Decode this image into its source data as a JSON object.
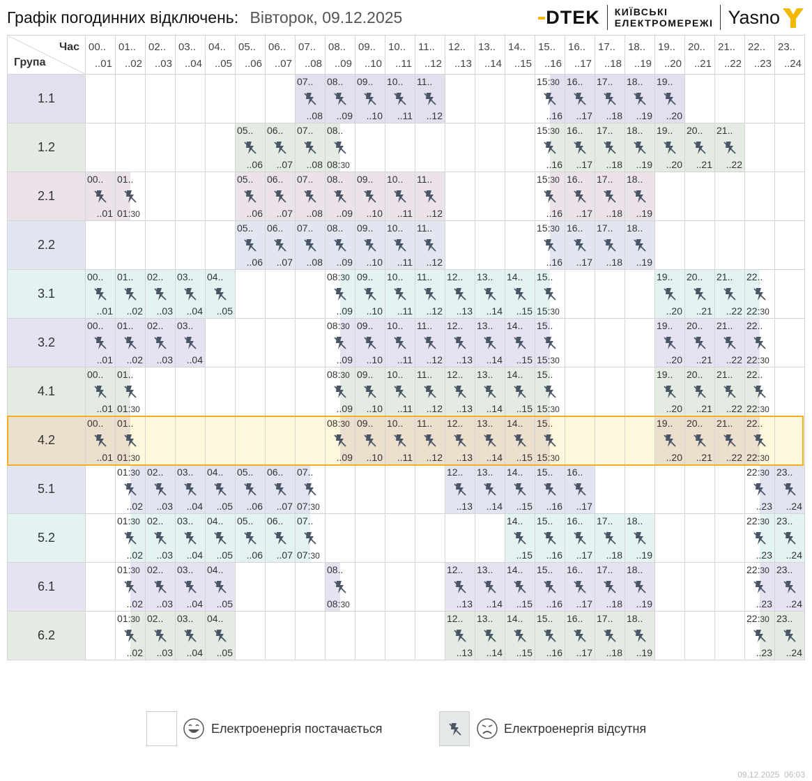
{
  "header": {
    "title": "Графік погодинних відключень:",
    "date": "Вівторок, 09.12.2025",
    "logo_dtek": "DTEK",
    "logo_kyiv_line1": "КИЇВСЬКІ",
    "logo_kyiv_line2": "ЕЛЕКТРОМЕРЕЖІ",
    "logo_yasno": "Yasno"
  },
  "corner": {
    "hour_label": "Час",
    "group_label": "Група"
  },
  "hours": [
    {
      "top": "00..",
      "bot": "..01"
    },
    {
      "top": "01..",
      "bot": "..02"
    },
    {
      "top": "02..",
      "bot": "..03"
    },
    {
      "top": "03..",
      "bot": "..04"
    },
    {
      "top": "04..",
      "bot": "..05"
    },
    {
      "top": "05..",
      "bot": "..06"
    },
    {
      "top": "06..",
      "bot": "..07"
    },
    {
      "top": "07..",
      "bot": "..08"
    },
    {
      "top": "08..",
      "bot": "..09"
    },
    {
      "top": "09..",
      "bot": "..10"
    },
    {
      "top": "10..",
      "bot": "..11"
    },
    {
      "top": "11..",
      "bot": "..12"
    },
    {
      "top": "12..",
      "bot": "..13"
    },
    {
      "top": "13..",
      "bot": "..14"
    },
    {
      "top": "14..",
      "bot": "..15"
    },
    {
      "top": "15..",
      "bot": "..16"
    },
    {
      "top": "16..",
      "bot": "..17"
    },
    {
      "top": "17..",
      "bot": "..18"
    },
    {
      "top": "18..",
      "bot": "..19"
    },
    {
      "top": "19..",
      "bot": "..20"
    },
    {
      "top": "20..",
      "bot": "..21"
    },
    {
      "top": "21..",
      "bot": "..22"
    },
    {
      "top": "22..",
      "bot": "..23"
    },
    {
      "top": "23..",
      "bot": "..24"
    }
  ],
  "groups": [
    {
      "name": "1.1",
      "color": "#e2e0ef",
      "cells": "0000000FFFFF000SFFFF0000",
      "highlight": false
    },
    {
      "name": "1.2",
      "color": "#e3ebe3",
      "cells": "00000FFFE000000SFFFFFF00",
      "highlight": false
    },
    {
      "name": "2.1",
      "color": "#ece2ea",
      "cells": "FE000FFFFFFF000SFFF00000",
      "highlight": false
    },
    {
      "name": "2.2",
      "color": "#e2e6f0",
      "cells": "00000FFFFFFF000SFFF00000",
      "highlight": false
    },
    {
      "name": "3.1",
      "color": "#e2f3f2",
      "cells": "FFFFF000SFFFFFFE000FFFE0",
      "highlight": false
    },
    {
      "name": "3.2",
      "color": "#e5e2f1",
      "cells": "FFFF0000SFFFFFFE000FFFE0",
      "highlight": false
    },
    {
      "name": "4.1",
      "color": "#e4ebe2",
      "cells": "FE000000SFFFFFFE000FFFE0",
      "highlight": false
    },
    {
      "name": "4.2",
      "color": "#ecdfcd",
      "cells": "FE000000SFFFFFFE000FFFE0",
      "highlight": true
    },
    {
      "name": "5.1",
      "color": "#e2e5f1",
      "cells": "0SFFFFFE0000FFFFF00000SF",
      "highlight": false
    },
    {
      "name": "5.2",
      "color": "#e2f3f2",
      "cells": "0SFFFFFE000000FFFFF000SF",
      "highlight": false
    },
    {
      "name": "6.1",
      "color": "#e6e2f1",
      "cells": "0SFFF000E000FFFFFFF000SF",
      "highlight": false
    },
    {
      "name": "6.2",
      "color": "#e4ebe2",
      "cells": "0SFFF0000000FFFFFFF000SF",
      "highlight": false
    }
  ],
  "highlight_fill": "#fdf8dc",
  "highlight_border": "#f0b020",
  "legend": {
    "on_label": "Електроенергія постачається",
    "off_label": "Електроенергія відсутня",
    "on_icon": "happy-face-icon",
    "off_icon": "sad-face-icon",
    "off_box_color": "#e4e8e8"
  },
  "half_hour_suffix": "30",
  "footer": {
    "date": "09.12.2025",
    "time": "06:03"
  }
}
